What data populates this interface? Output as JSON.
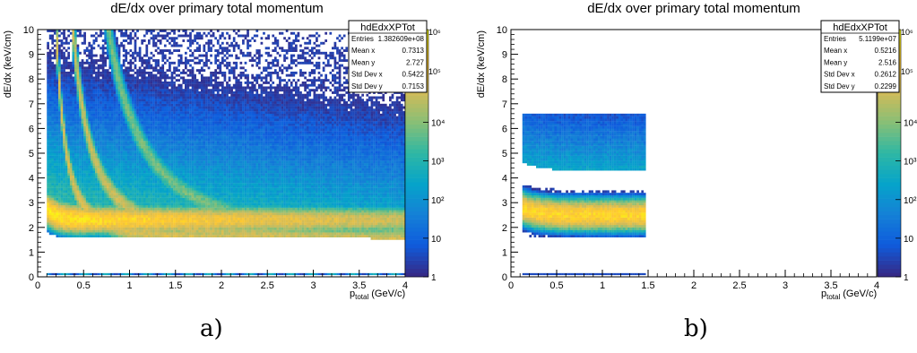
{
  "chart_data": [
    {
      "type": "heatmap",
      "panel_label": "a)",
      "title": "dE/dx over primary total momentum",
      "xlabel_main": "p",
      "xlabel_sub": "total",
      "xlabel_unit": "(GeV/c)",
      "ylabel": "dE/dx (keV/cm)",
      "xlim": [
        0,
        4
      ],
      "ylim": [
        0,
        10
      ],
      "x_ticks": [
        "0",
        "0.5",
        "1",
        "1.5",
        "2",
        "2.5",
        "3",
        "3.5",
        "4"
      ],
      "y_ticks": [
        "0",
        "1",
        "2",
        "3",
        "4",
        "5",
        "6",
        "7",
        "8",
        "9",
        "10"
      ],
      "z_scale": "log",
      "z_ticks": [
        "1",
        "10",
        "10²",
        "10³",
        "10⁴"
      ],
      "z_ticks_clipped": [
        "10⁶",
        "10⁵"
      ],
      "stats": {
        "name": "hdEdxXPTot",
        "rows": [
          {
            "label": "Entries",
            "value": "1.382609e+08"
          },
          {
            "label": "Mean x",
            "value": "0.7313"
          },
          {
            "label": "Mean y",
            "value": "2.727"
          },
          {
            "label": "Std Dev x",
            "value": "0.5422"
          },
          {
            "label": "Std Dev y",
            "value": "0.7153"
          }
        ]
      },
      "momentum_range": [
        0.1,
        4.0
      ],
      "mip_band_dEdx": 2.3
    },
    {
      "type": "heatmap",
      "panel_label": "b)",
      "title": "dE/dx over primary total momentum",
      "xlabel_main": "p",
      "xlabel_sub": "total",
      "xlabel_unit": "(GeV/c)",
      "ylabel": "dE/dx (keV/cm)",
      "xlim": [
        0,
        4
      ],
      "ylim": [
        0,
        10
      ],
      "x_ticks": [
        "0",
        "0.5",
        "1",
        "1.5",
        "2",
        "2.5",
        "3",
        "3.5",
        "4"
      ],
      "y_ticks": [
        "0",
        "1",
        "2",
        "3",
        "4",
        "5",
        "6",
        "7",
        "8",
        "9",
        "10"
      ],
      "z_scale": "log",
      "z_ticks": [
        "1",
        "10",
        "10²",
        "10³",
        "10⁴"
      ],
      "z_ticks_clipped": [
        "10⁶",
        "10⁵"
      ],
      "stats": {
        "name": "hdEdxXPTot",
        "rows": [
          {
            "label": "Entries",
            "value": "5.1199e+07"
          },
          {
            "label": "Mean x",
            "value": "0.5216"
          },
          {
            "label": "Mean y",
            "value": "2.516"
          },
          {
            "label": "Std Dev x",
            "value": "0.2612"
          },
          {
            "label": "Std Dev y",
            "value": "0.2299"
          }
        ]
      },
      "momentum_range": [
        0.12,
        1.48
      ],
      "mip_band_dEdx": 2.5
    }
  ],
  "colors": {
    "palette": [
      "#352a87",
      "#0f5cdd",
      "#1481d6",
      "#06a4ca",
      "#2eb7a4",
      "#87bf77",
      "#d1bb59",
      "#fec832",
      "#f9fb0e"
    ]
  }
}
